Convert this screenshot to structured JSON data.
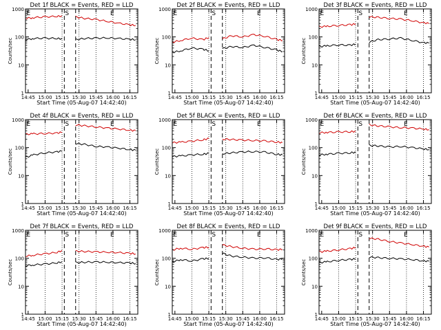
{
  "figure": {
    "background": "#ffffff",
    "events_color": "#000000",
    "lld_color": "#d00000"
  },
  "chart_data": [
    {
      "type": "line",
      "title": "Det 1f BLACK = Events, RED = LLD",
      "xlabel": "Start Time (05-Aug-07 14:42:40)",
      "ylabel": "Counts/sec",
      "yscale": "log",
      "ylim": [
        1,
        1000
      ],
      "xlim": [
        "14:42:40",
        "16:22:00"
      ],
      "x_ticks": [
        "14:45",
        "15:00",
        "15:15",
        "15:30",
        "15:45",
        "16:00",
        "16:15"
      ],
      "y_ticks": [
        "1",
        "10",
        "100",
        "1000"
      ],
      "markers": [
        {
          "label": "E",
          "x": "14:43"
        },
        {
          "label": "S",
          "x": "15:17"
        },
        {
          "label": "E",
          "x": "15:57"
        }
      ],
      "series": [
        {
          "name": "Events",
          "color": "#000000",
          "x": [
            "14:43",
            "14:50",
            "15:00",
            "15:10",
            "15:15",
            "15:27",
            "15:35",
            "15:45",
            "15:55",
            "16:05",
            "16:15",
            "16:20"
          ],
          "y": [
            80,
            88,
            90,
            88,
            86,
            80,
            88,
            90,
            92,
            88,
            82,
            80
          ]
        },
        {
          "name": "LLD",
          "color": "#d00000",
          "x": [
            "14:43",
            "14:50",
            "15:00",
            "15:10",
            "15:15",
            "15:27",
            "15:35",
            "15:45",
            "15:55",
            "16:05",
            "16:15",
            "16:20"
          ],
          "y": [
            460,
            490,
            520,
            540,
            560,
            520,
            460,
            420,
            360,
            310,
            270,
            260
          ]
        }
      ]
    },
    {
      "type": "line",
      "title": "Det 2f BLACK = Events, RED = LLD",
      "xlabel": "Start Time (05-Aug-07 14:42:40)",
      "ylabel": "Counts/sec",
      "yscale": "log",
      "ylim": [
        1,
        1000
      ],
      "xlim": [
        "14:42:40",
        "16:22:00"
      ],
      "x_ticks": [
        "14:45",
        "15:00",
        "15:15",
        "15:30",
        "15:45",
        "16:00",
        "16:15"
      ],
      "y_ticks": [
        "1",
        "10",
        "100",
        "1000"
      ],
      "markers": [
        {
          "label": "E",
          "x": "14:43"
        },
        {
          "label": "S",
          "x": "15:17"
        },
        {
          "label": "E",
          "x": "15:57"
        }
      ],
      "series": [
        {
          "name": "Events",
          "color": "#000000",
          "x": [
            "14:43",
            "14:50",
            "15:00",
            "15:10",
            "15:15",
            "15:27",
            "15:35",
            "15:45",
            "15:55",
            "16:05",
            "16:15",
            "16:20"
          ],
          "y": [
            28,
            32,
            40,
            36,
            32,
            38,
            45,
            42,
            50,
            42,
            34,
            30
          ]
        },
        {
          "name": "LLD",
          "color": "#d00000",
          "x": [
            "14:43",
            "14:50",
            "15:00",
            "15:10",
            "15:15",
            "15:27",
            "15:35",
            "15:45",
            "15:55",
            "16:05",
            "16:15",
            "16:20"
          ],
          "y": [
            65,
            75,
            90,
            80,
            95,
            85,
            110,
            100,
            120,
            105,
            80,
            75
          ]
        }
      ]
    },
    {
      "type": "line",
      "title": "Det 3f BLACK = Events, RED = LLD",
      "xlabel": "Start Time (05-Aug-07 14:42:40)",
      "ylabel": "Counts/sec",
      "yscale": "log",
      "ylim": [
        1,
        1000
      ],
      "xlim": [
        "14:42:40",
        "16:22:00"
      ],
      "x_ticks": [
        "14:45",
        "15:00",
        "15:15",
        "15:30",
        "15:45",
        "16:00",
        "16:15"
      ],
      "y_ticks": [
        "1",
        "10",
        "100",
        "1000"
      ],
      "markers": [
        {
          "label": "E",
          "x": "14:43"
        },
        {
          "label": "S",
          "x": "15:17"
        },
        {
          "label": "E",
          "x": "15:57"
        }
      ],
      "series": [
        {
          "name": "Events",
          "color": "#000000",
          "x": [
            "14:43",
            "14:50",
            "15:00",
            "15:10",
            "15:15",
            "15:27",
            "15:35",
            "15:45",
            "15:55",
            "16:05",
            "16:15",
            "16:20"
          ],
          "y": [
            45,
            48,
            52,
            50,
            55,
            65,
            80,
            85,
            90,
            75,
            62,
            60
          ]
        },
        {
          "name": "LLD",
          "color": "#d00000",
          "x": [
            "14:43",
            "14:50",
            "15:00",
            "15:10",
            "15:15",
            "15:27",
            "15:35",
            "15:45",
            "15:55",
            "16:05",
            "16:15",
            "16:20"
          ],
          "y": [
            230,
            240,
            260,
            270,
            290,
            520,
            500,
            460,
            430,
            380,
            320,
            300
          ]
        }
      ]
    },
    {
      "type": "line",
      "title": "Det 4f BLACK = Events, RED = LLD",
      "xlabel": "Start Time (05-Aug-07 14:42:40)",
      "ylabel": "Counts/sec",
      "yscale": "log",
      "ylim": [
        1,
        1000
      ],
      "xlim": [
        "14:42:40",
        "16:22:00"
      ],
      "x_ticks": [
        "14:45",
        "15:00",
        "15:15",
        "15:30",
        "15:45",
        "16:00",
        "16:15"
      ],
      "y_ticks": [
        "1",
        "10",
        "100",
        "1000"
      ],
      "markers": [
        {
          "label": "E",
          "x": "14:43"
        },
        {
          "label": "S",
          "x": "15:17"
        },
        {
          "label": "E",
          "x": "15:57"
        }
      ],
      "series": [
        {
          "name": "Events",
          "color": "#000000",
          "x": [
            "14:43",
            "14:50",
            "15:00",
            "15:10",
            "15:15",
            "15:27",
            "15:35",
            "15:45",
            "15:55",
            "16:05",
            "16:15",
            "16:20"
          ],
          "y": [
            45,
            55,
            65,
            70,
            75,
            140,
            130,
            110,
            105,
            95,
            85,
            80
          ]
        },
        {
          "name": "LLD",
          "color": "#d00000",
          "x": [
            "14:43",
            "14:50",
            "15:00",
            "15:10",
            "15:15",
            "15:27",
            "15:35",
            "15:45",
            "15:55",
            "16:05",
            "16:15",
            "16:20"
          ],
          "y": [
            300,
            310,
            320,
            330,
            350,
            650,
            600,
            550,
            500,
            460,
            420,
            400
          ]
        }
      ]
    },
    {
      "type": "line",
      "title": "Det 5f BLACK = Events, RED = LLD",
      "xlabel": "Start Time (05-Aug-07 14:42:40)",
      "ylabel": "Counts/sec",
      "yscale": "log",
      "ylim": [
        1,
        1000
      ],
      "xlim": [
        "14:42:40",
        "16:22:00"
      ],
      "x_ticks": [
        "14:45",
        "15:00",
        "15:15",
        "15:30",
        "15:45",
        "16:00",
        "16:15"
      ],
      "y_ticks": [
        "1",
        "10",
        "100",
        "1000"
      ],
      "markers": [
        {
          "label": "E",
          "x": "14:43"
        },
        {
          "label": "S",
          "x": "15:17"
        },
        {
          "label": "E",
          "x": "15:57"
        }
      ],
      "series": [
        {
          "name": "Events",
          "color": "#000000",
          "x": [
            "14:43",
            "14:50",
            "15:00",
            "15:10",
            "15:15",
            "15:27",
            "15:35",
            "15:45",
            "15:55",
            "16:05",
            "16:15",
            "16:20"
          ],
          "y": [
            48,
            50,
            55,
            58,
            62,
            60,
            65,
            70,
            72,
            68,
            58,
            55
          ]
        },
        {
          "name": "LLD",
          "color": "#d00000",
          "x": [
            "14:43",
            "14:50",
            "15:00",
            "15:10",
            "15:15",
            "15:27",
            "15:35",
            "15:45",
            "15:55",
            "16:05",
            "16:15",
            "16:20"
          ],
          "y": [
            150,
            155,
            170,
            190,
            210,
            200,
            195,
            185,
            180,
            170,
            160,
            150
          ]
        }
      ]
    },
    {
      "type": "line",
      "title": "Det 6f BLACK = Events, RED = LLD",
      "xlabel": "Start Time (05-Aug-07 14:42:40)",
      "ylabel": "Counts/sec",
      "yscale": "log",
      "ylim": [
        1,
        1000
      ],
      "xlim": [
        "14:42:40",
        "16:22:00"
      ],
      "x_ticks": [
        "14:45",
        "15:00",
        "15:15",
        "15:30",
        "15:45",
        "16:00",
        "16:15"
      ],
      "y_ticks": [
        "1",
        "10",
        "100",
        "1000"
      ],
      "markers": [
        {
          "label": "E",
          "x": "14:43"
        },
        {
          "label": "S",
          "x": "15:17"
        },
        {
          "label": "E",
          "x": "15:57"
        }
      ],
      "series": [
        {
          "name": "Events",
          "color": "#000000",
          "x": [
            "14:43",
            "14:50",
            "15:00",
            "15:10",
            "15:15",
            "15:27",
            "15:35",
            "15:45",
            "15:55",
            "16:05",
            "16:15",
            "16:20"
          ],
          "y": [
            55,
            58,
            62,
            65,
            68,
            120,
            115,
            105,
            110,
            100,
            90,
            85
          ]
        },
        {
          "name": "LLD",
          "color": "#d00000",
          "x": [
            "14:43",
            "14:50",
            "15:00",
            "15:10",
            "15:15",
            "15:27",
            "15:35",
            "15:45",
            "15:55",
            "16:05",
            "16:15",
            "16:20"
          ],
          "y": [
            340,
            350,
            360,
            370,
            380,
            650,
            600,
            550,
            520,
            500,
            460,
            440
          ]
        }
      ]
    },
    {
      "type": "line",
      "title": "Det 7f BLACK = Events, RED = LLD",
      "xlabel": "Start Time (05-Aug-07 14:42:40)",
      "ylabel": "Counts/sec",
      "yscale": "log",
      "ylim": [
        1,
        1000
      ],
      "xlim": [
        "14:42:40",
        "16:22:00"
      ],
      "x_ticks": [
        "14:45",
        "15:00",
        "15:15",
        "15:30",
        "15:45",
        "16:00",
        "16:15"
      ],
      "y_ticks": [
        "1",
        "10",
        "100",
        "1000"
      ],
      "markers": [
        {
          "label": "E",
          "x": "14:43"
        },
        {
          "label": "S",
          "x": "15:17"
        },
        {
          "label": "E",
          "x": "15:57"
        }
      ],
      "series": [
        {
          "name": "Events",
          "color": "#000000",
          "x": [
            "14:43",
            "14:50",
            "15:00",
            "15:10",
            "15:15",
            "15:27",
            "15:35",
            "15:45",
            "15:55",
            "16:05",
            "16:15",
            "16:20"
          ],
          "y": [
            55,
            58,
            62,
            68,
            75,
            70,
            72,
            74,
            72,
            70,
            68,
            65
          ]
        },
        {
          "name": "LLD",
          "color": "#d00000",
          "x": [
            "14:43",
            "14:50",
            "15:00",
            "15:10",
            "15:15",
            "15:27",
            "15:35",
            "15:45",
            "15:55",
            "16:05",
            "16:15",
            "16:20"
          ],
          "y": [
            120,
            130,
            145,
            160,
            190,
            180,
            175,
            170,
            165,
            160,
            150,
            145
          ]
        }
      ]
    },
    {
      "type": "line",
      "title": "Det 8f BLACK = Events, RED = LLD",
      "xlabel": "Start Time (05-Aug-07 14:42:40)",
      "ylabel": "Counts/sec",
      "yscale": "log",
      "ylim": [
        1,
        1000
      ],
      "xlim": [
        "14:42:40",
        "16:22:00"
      ],
      "x_ticks": [
        "14:45",
        "15:00",
        "15:15",
        "15:30",
        "15:45",
        "16:00",
        "16:15"
      ],
      "y_ticks": [
        "1",
        "10",
        "100",
        "1000"
      ],
      "markers": [
        {
          "label": "E",
          "x": "14:43"
        },
        {
          "label": "S",
          "x": "15:17"
        },
        {
          "label": "E",
          "x": "15:57"
        }
      ],
      "series": [
        {
          "name": "Events",
          "color": "#000000",
          "x": [
            "14:43",
            "14:50",
            "15:00",
            "15:10",
            "15:15",
            "15:27",
            "15:35",
            "15:45",
            "15:55",
            "16:05",
            "16:15",
            "16:20"
          ],
          "y": [
            75,
            90,
            80,
            95,
            100,
            150,
            120,
            110,
            100,
            105,
            90,
            95
          ]
        },
        {
          "name": "LLD",
          "color": "#d00000",
          "x": [
            "14:43",
            "14:50",
            "15:00",
            "15:10",
            "15:15",
            "15:27",
            "15:35",
            "15:45",
            "15:55",
            "16:05",
            "16:15",
            "16:20"
          ],
          "y": [
            200,
            230,
            210,
            240,
            250,
            300,
            260,
            230,
            210,
            220,
            200,
            210
          ]
        }
      ]
    },
    {
      "type": "line",
      "title": "Det 9f BLACK = Events, RED = LLD",
      "xlabel": "Start Time (05-Aug-07 14:42:40)",
      "ylabel": "Counts/sec",
      "yscale": "log",
      "ylim": [
        1,
        1000
      ],
      "xlim": [
        "14:42:40",
        "16:22:00"
      ],
      "x_ticks": [
        "14:45",
        "15:00",
        "15:15",
        "15:30",
        "15:45",
        "16:00",
        "16:15"
      ],
      "y_ticks": [
        "1",
        "10",
        "100",
        "1000"
      ],
      "markers": [
        {
          "label": "E",
          "x": "14:43"
        },
        {
          "label": "S",
          "x": "15:17"
        },
        {
          "label": "E",
          "x": "15:57"
        }
      ],
      "series": [
        {
          "name": "Events",
          "color": "#000000",
          "x": [
            "14:43",
            "14:50",
            "15:00",
            "15:10",
            "15:15",
            "15:27",
            "15:35",
            "15:45",
            "15:55",
            "16:05",
            "16:15",
            "16:20"
          ],
          "y": [
            70,
            75,
            85,
            90,
            95,
            110,
            105,
            100,
            95,
            90,
            80,
            78
          ]
        },
        {
          "name": "LLD",
          "color": "#d00000",
          "x": [
            "14:43",
            "14:50",
            "15:00",
            "15:10",
            "15:15",
            "15:27",
            "15:35",
            "15:45",
            "15:55",
            "16:05",
            "16:15",
            "16:20"
          ],
          "y": [
            170,
            180,
            200,
            220,
            240,
            520,
            480,
            400,
            350,
            310,
            270,
            250
          ]
        }
      ]
    }
  ]
}
